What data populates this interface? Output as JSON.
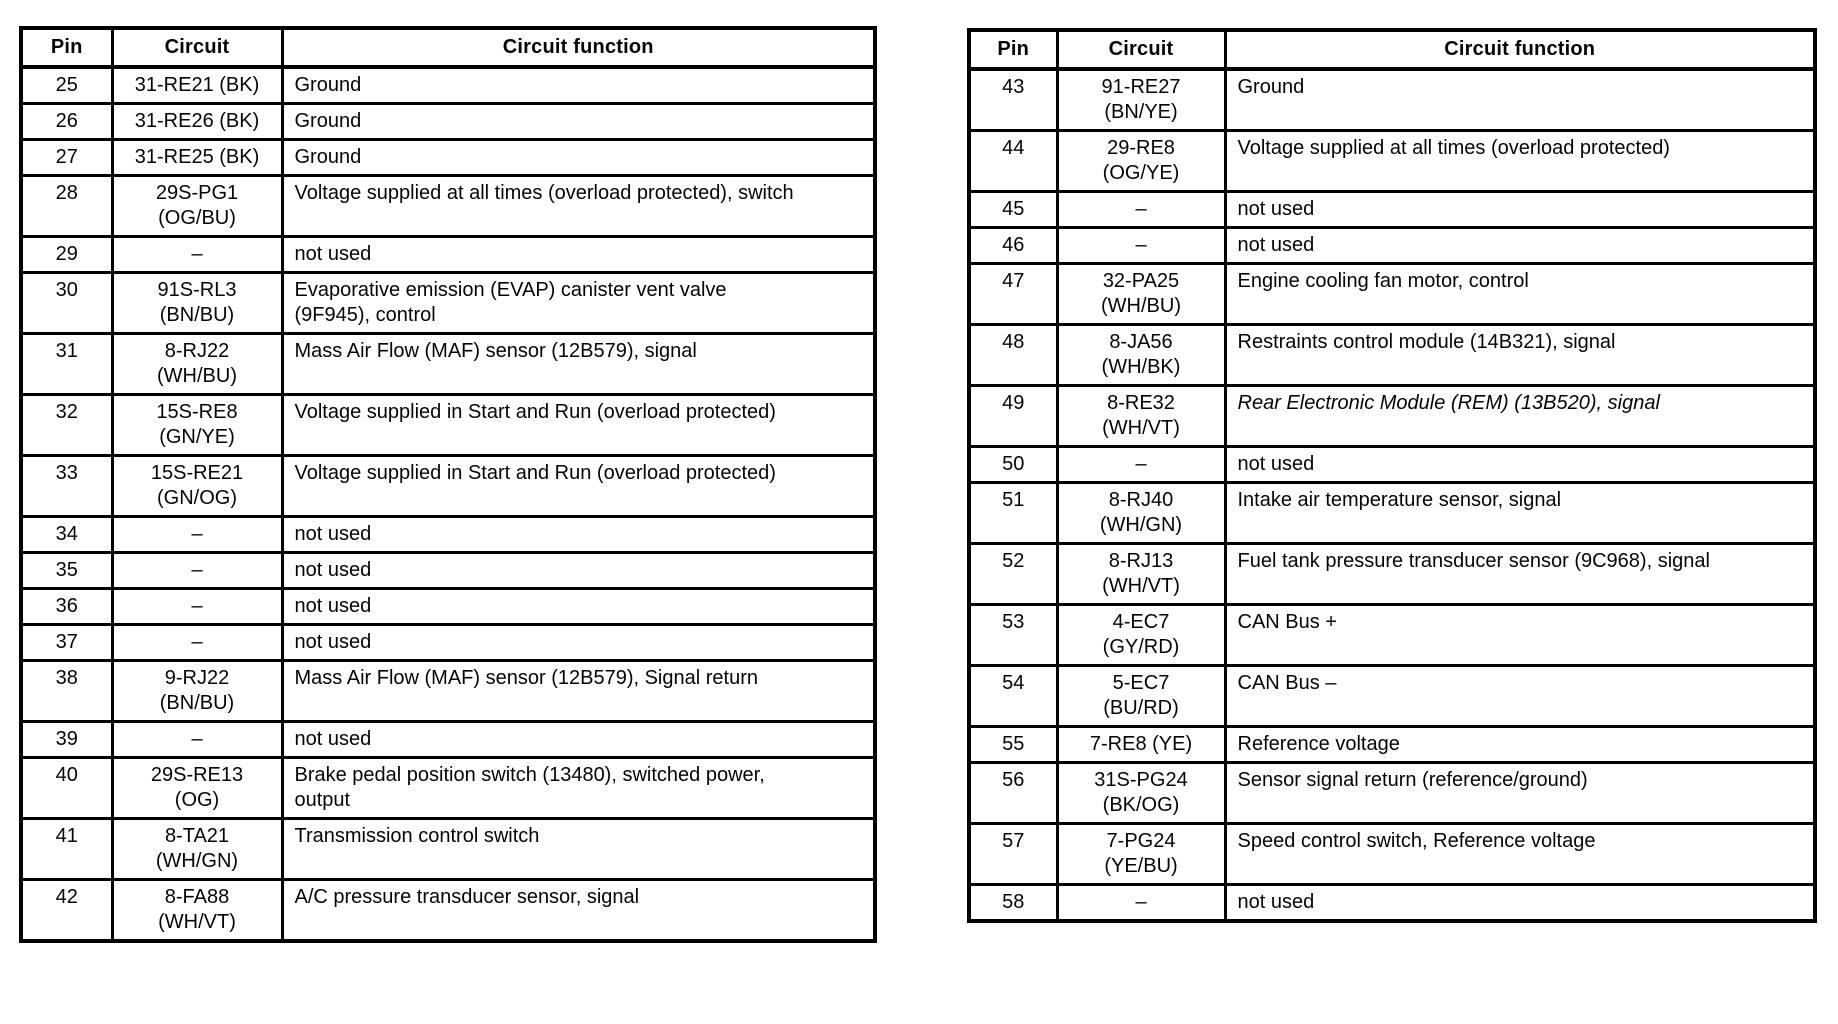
{
  "colors": {
    "text": "#050505",
    "border": "#000000",
    "background": "#ffffff"
  },
  "tables": [
    {
      "name": "connector-pinout-pins-25-42",
      "headers": [
        "Pin",
        "Circuit",
        "Circuit function"
      ],
      "rows": [
        {
          "pin": "25",
          "circuit": "31-RE21 (BK)",
          "function": "Ground"
        },
        {
          "pin": "26",
          "circuit": "31-RE26 (BK)",
          "function": "Ground"
        },
        {
          "pin": "27",
          "circuit": "31-RE25 (BK)",
          "function": "Ground"
        },
        {
          "pin": "28",
          "circuit": "29S-PG1\n(OG/BU)",
          "function": "Voltage supplied at all times (overload protected), switch"
        },
        {
          "pin": "29",
          "circuit": "–",
          "function": "not used"
        },
        {
          "pin": "30",
          "circuit": "91S-RL3\n(BN/BU)",
          "function": "Evaporative emission (EVAP) canister vent valve\n(9F945), control"
        },
        {
          "pin": "31",
          "circuit": "8-RJ22\n(WH/BU)",
          "function": "Mass Air Flow (MAF) sensor (12B579), signal"
        },
        {
          "pin": "32",
          "circuit": "15S-RE8\n(GN/YE)",
          "function": "Voltage supplied in Start and Run (overload protected)"
        },
        {
          "pin": "33",
          "circuit": "15S-RE21\n(GN/OG)",
          "function": "Voltage supplied in Start and Run (overload protected)"
        },
        {
          "pin": "34",
          "circuit": "–",
          "function": "not used"
        },
        {
          "pin": "35",
          "circuit": "–",
          "function": "not used"
        },
        {
          "pin": "36",
          "circuit": "–",
          "function": "not used"
        },
        {
          "pin": "37",
          "circuit": "–",
          "function": "not used"
        },
        {
          "pin": "38",
          "circuit": "9-RJ22\n(BN/BU)",
          "function": "Mass Air Flow (MAF) sensor (12B579), Signal return"
        },
        {
          "pin": "39",
          "circuit": "–",
          "function": "not used"
        },
        {
          "pin": "40",
          "circuit": "29S-RE13\n(OG)",
          "function": "Brake pedal position switch (13480), switched power,\noutput"
        },
        {
          "pin": "41",
          "circuit": "8-TA21\n(WH/GN)",
          "function": "Transmission control switch"
        },
        {
          "pin": "42",
          "circuit": "8-FA88\n(WH/VT)",
          "function": "A/C pressure transducer sensor, signal"
        }
      ]
    },
    {
      "name": "connector-pinout-pins-43-58",
      "headers": [
        "Pin",
        "Circuit",
        "Circuit function"
      ],
      "rows": [
        {
          "pin": "43",
          "circuit": "91-RE27\n(BN/YE)",
          "function": "Ground"
        },
        {
          "pin": "44",
          "circuit": "29-RE8\n(OG/YE)",
          "function": "Voltage supplied at all times (overload protected)"
        },
        {
          "pin": "45",
          "circuit": "–",
          "function": "not used"
        },
        {
          "pin": "46",
          "circuit": "–",
          "function": "not used"
        },
        {
          "pin": "47",
          "circuit": "32-PA25\n(WH/BU)",
          "function": "Engine cooling fan motor, control"
        },
        {
          "pin": "48",
          "circuit": "8-JA56\n(WH/BK)",
          "function": "Restraints control module (14B321), signal"
        },
        {
          "pin": "49",
          "circuit": "8-RE32\n(WH/VT)",
          "function": "Rear Electronic Module (REM) (13B520), signal",
          "emphasis": "italic"
        },
        {
          "pin": "50",
          "circuit": "–",
          "function": "not used"
        },
        {
          "pin": "51",
          "circuit": "8-RJ40\n(WH/GN)",
          "function": "Intake air temperature sensor, signal"
        },
        {
          "pin": "52",
          "circuit": "8-RJ13\n(WH/VT)",
          "function": "Fuel tank pressure transducer sensor (9C968), signal"
        },
        {
          "pin": "53",
          "circuit": "4-EC7\n(GY/RD)",
          "function": "CAN Bus +"
        },
        {
          "pin": "54",
          "circuit": "5-EC7\n(BU/RD)",
          "function": "CAN Bus –"
        },
        {
          "pin": "55",
          "circuit": "7-RE8 (YE)",
          "function": "Reference voltage"
        },
        {
          "pin": "56",
          "circuit": "31S-PG24\n(BK/OG)",
          "function": "Sensor signal return (reference/ground)"
        },
        {
          "pin": "57",
          "circuit": "7-PG24\n(YE/BU)",
          "function": "Speed control switch, Reference voltage"
        },
        {
          "pin": "58",
          "circuit": "–",
          "function": "not used"
        }
      ]
    }
  ]
}
